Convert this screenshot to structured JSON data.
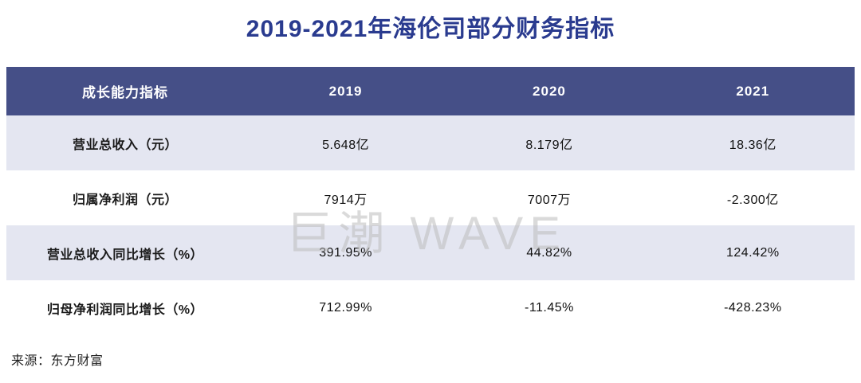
{
  "title": "2019-2021年海伦司部分财务指标",
  "watermark": "巨潮 WAVE",
  "source": "来源：东方财富",
  "colors": {
    "title_blue": "#2a3b8f",
    "header_bg": "#454f87",
    "header_text": "#ffffff",
    "row_alt_bg": "#e4e6f1",
    "body_text": "#111111",
    "watermark_gray": "#bdbdbd"
  },
  "chart_data": {
    "type": "table",
    "title": "2019-2021年海伦司部分财务指标",
    "columns": [
      "成长能力指标",
      "2019",
      "2020",
      "2021"
    ],
    "rows": [
      [
        "营业总收入（元）",
        "5.648亿",
        "8.179亿",
        "18.36亿"
      ],
      [
        "归属净利润（元）",
        "7914万",
        "7007万",
        "-2.300亿"
      ],
      [
        "营业总收入同比增长（%）",
        "391.95%",
        "44.82%",
        "124.42%"
      ],
      [
        "归母净利润同比增长（%）",
        "712.99%",
        "-11.45%",
        "-428.23%"
      ]
    ],
    "source": "来源：东方财富",
    "layout": {
      "header_style": "dark-blue band, white bold text",
      "row_striping": "odd rows light lavender, even rows white",
      "first_column_align": "center",
      "value_align": "center"
    }
  }
}
